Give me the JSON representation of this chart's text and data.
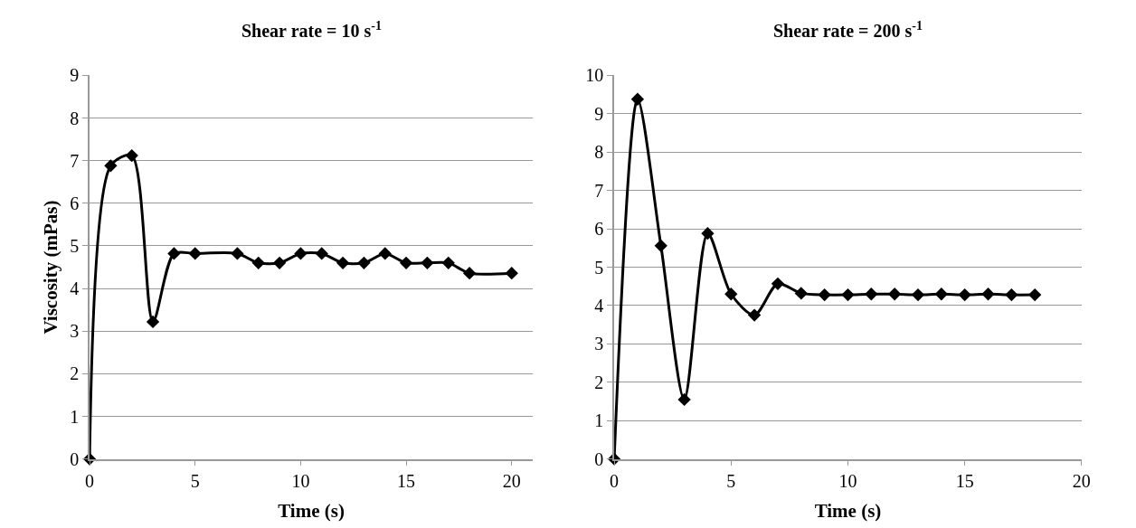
{
  "chart_data": [
    {
      "type": "line",
      "title": "Shear rate = 10 s$^{-1}$",
      "xlabel": "Time (s)",
      "ylabel": "Viscosity (mPas)",
      "x": [
        0,
        1,
        2,
        3,
        4,
        5,
        7,
        8,
        9,
        10,
        11,
        12,
        13,
        14,
        15,
        16,
        17,
        18,
        20
      ],
      "series": [
        {
          "color": "#000000",
          "values": [
            0,
            6.88,
            7.12,
            3.22,
            4.82,
            4.82,
            4.82,
            4.6,
            4.6,
            4.82,
            4.82,
            4.6,
            4.6,
            4.82,
            4.6,
            4.6,
            4.6,
            4.36,
            4.36
          ]
        }
      ],
      "xlim": [
        0,
        21
      ],
      "xticks": [
        0,
        5,
        10,
        15,
        20
      ],
      "ylim": [
        0,
        9
      ],
      "yticks": [
        0,
        1,
        2,
        3,
        4,
        5,
        6,
        7,
        8,
        9
      ],
      "grid": "y",
      "marker": "diamond",
      "line_style": "solid"
    },
    {
      "type": "line",
      "title": "Shear rate = 200 s$^{-1}$",
      "xlabel": "Time (s)",
      "x": [
        0,
        1,
        2,
        3,
        4,
        5,
        6,
        7,
        8,
        9,
        10,
        11,
        12,
        13,
        14,
        15,
        16,
        17,
        18
      ],
      "series": [
        {
          "color": "#000000",
          "values": [
            0,
            9.38,
            5.56,
            1.55,
            5.88,
            4.3,
            3.75,
            4.57,
            4.32,
            4.28,
            4.28,
            4.3,
            4.3,
            4.28,
            4.3,
            4.28,
            4.3,
            4.28,
            4.28
          ]
        }
      ],
      "xlim": [
        0,
        20
      ],
      "xticks": [
        0,
        5,
        10,
        15,
        20
      ],
      "ylim": [
        0,
        10
      ],
      "yticks": [
        0,
        1,
        2,
        3,
        4,
        5,
        6,
        7,
        8,
        9,
        10
      ],
      "grid": "y",
      "marker": "diamond",
      "line_style": "solid"
    }
  ]
}
